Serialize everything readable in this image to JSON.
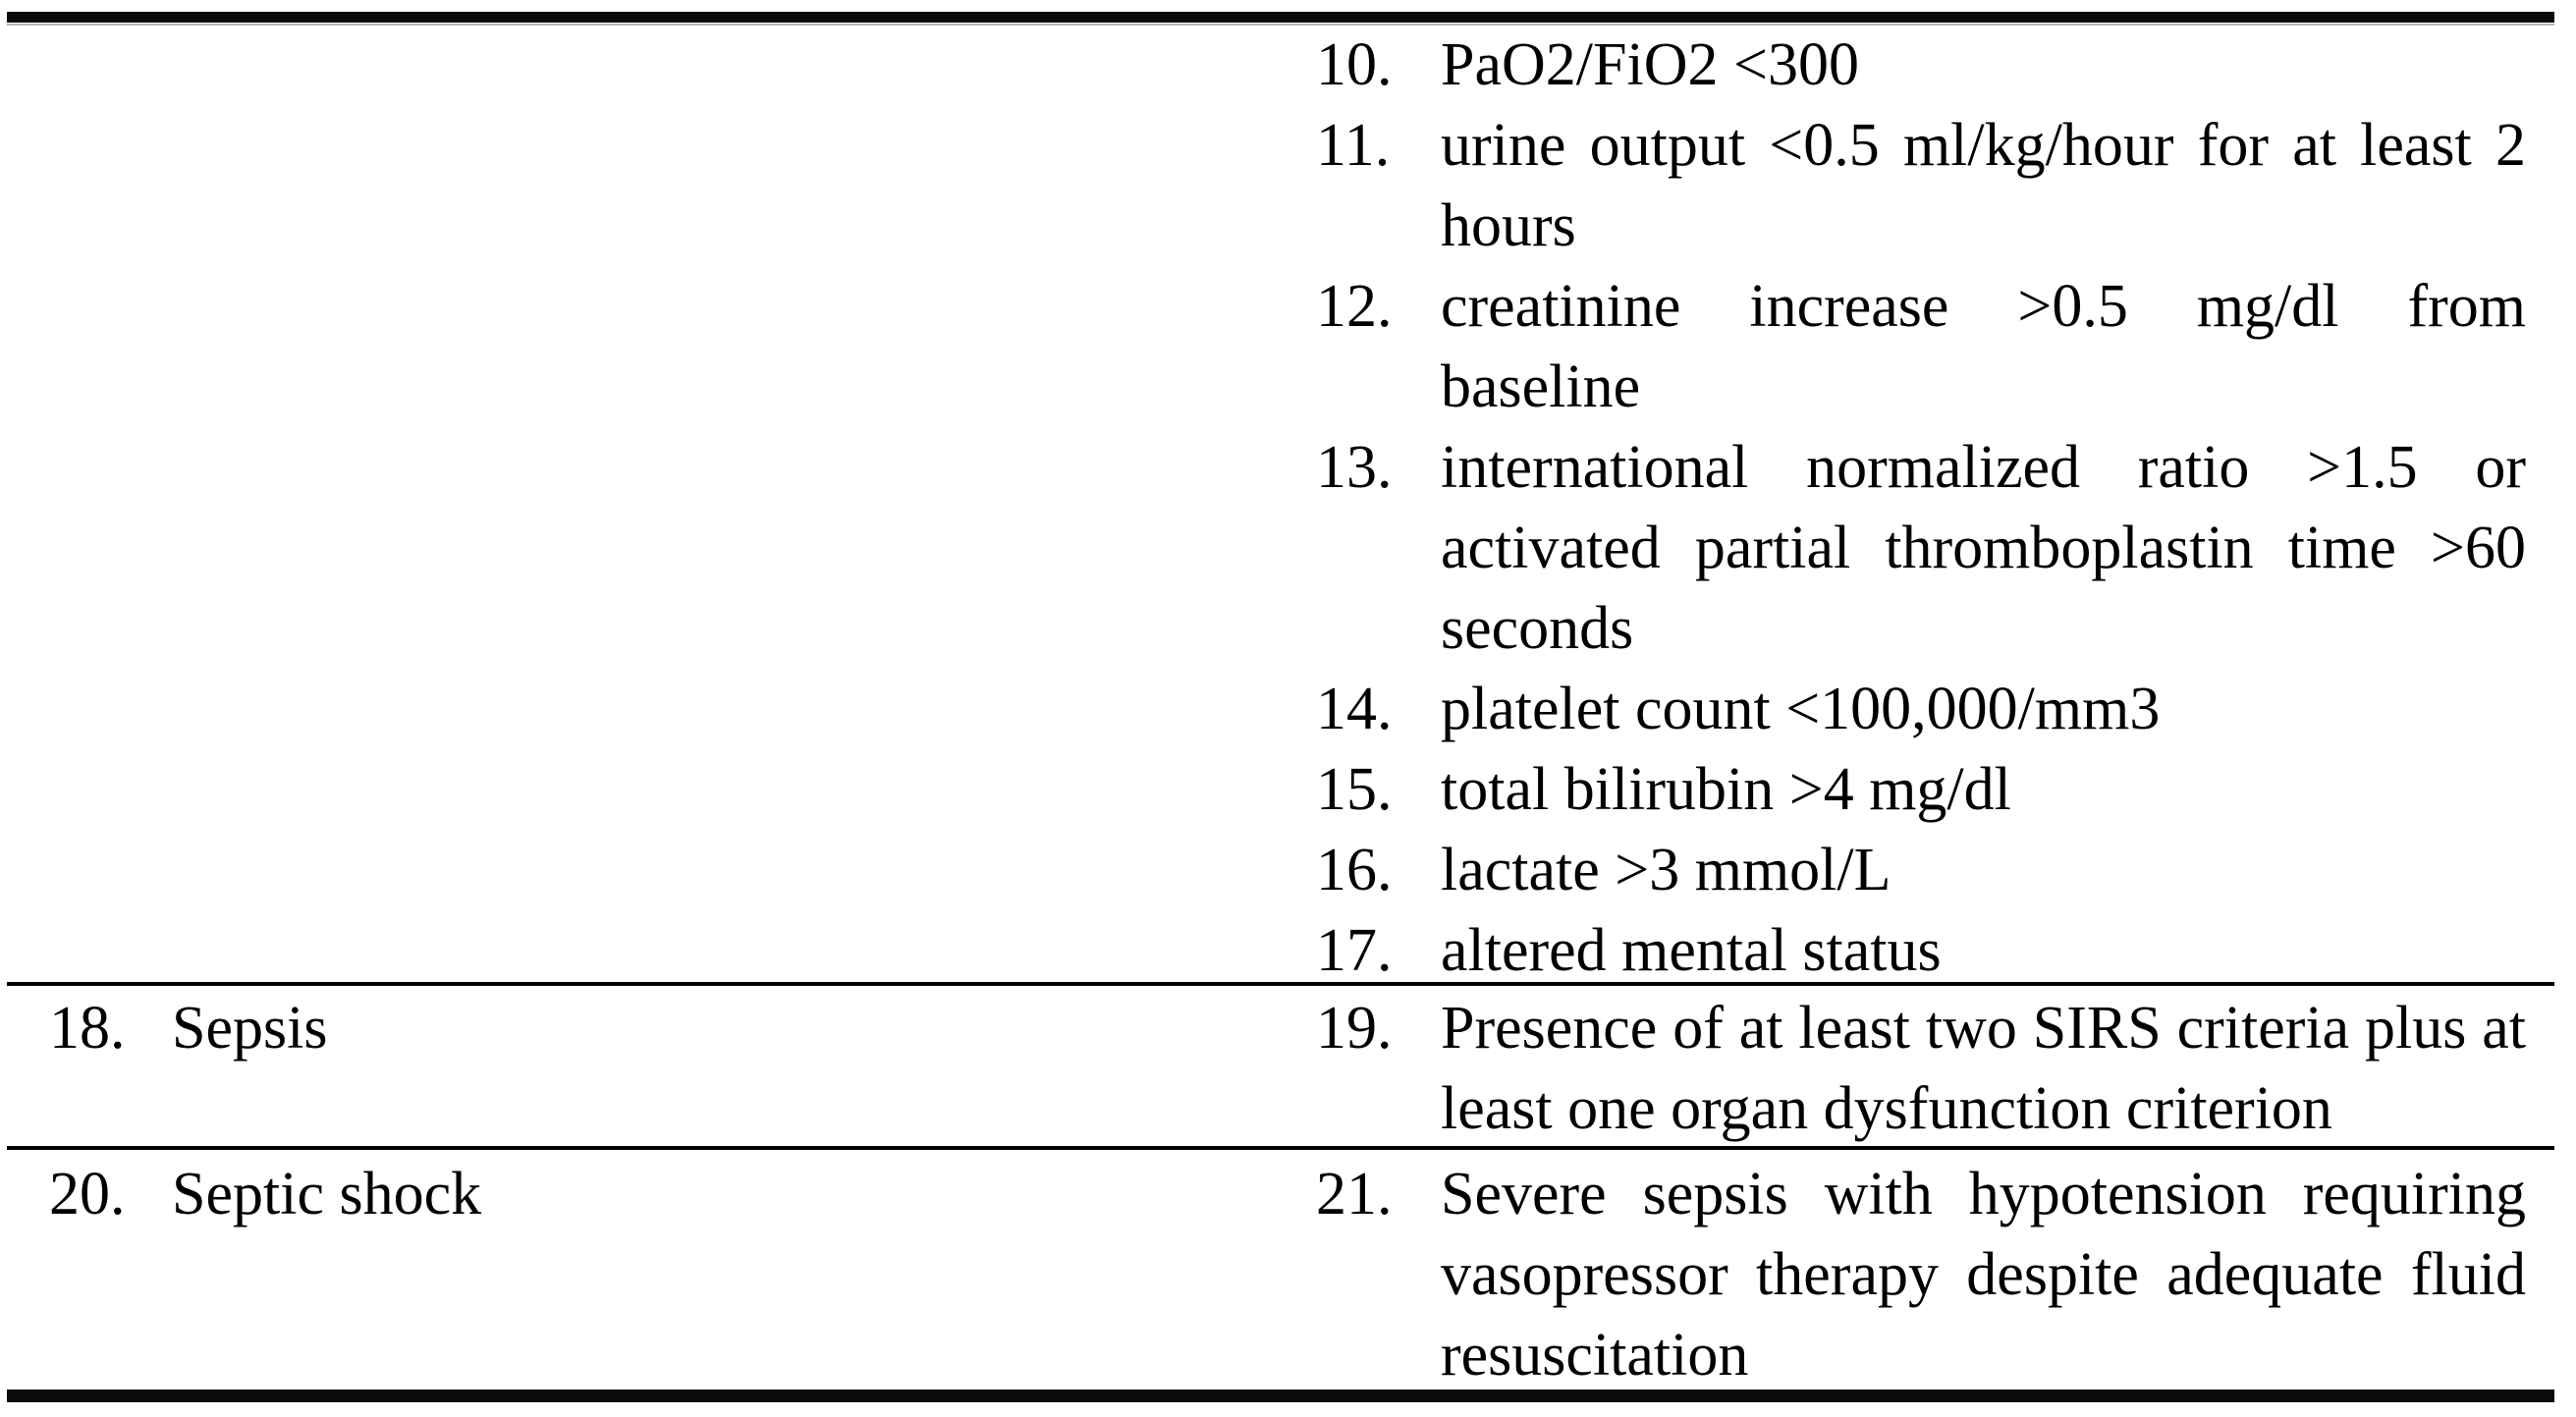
{
  "document": {
    "type": "paper-table-fragment",
    "description": "continuation of a numbered clinical-criteria table (sepsis definitions)"
  },
  "colors": {
    "background": "#ffffff",
    "text": "#000000",
    "rule_heavy": "#0b0b0b",
    "rule_thin": "#000000"
  },
  "table": {
    "sections": [
      {
        "left": null,
        "right": [
          {
            "num": "10.",
            "lines": [
              {
                "t": "PaO2/FiO2 <300",
                "j": false
              }
            ]
          },
          {
            "num": "11.",
            "lines": [
              {
                "t": "urine output <0.5 ml/kg/hour for at least 2",
                "j": true
              },
              {
                "t": "hours",
                "j": false
              }
            ]
          },
          {
            "num": "12.",
            "lines": [
              {
                "t": "creatinine increase >0.5 mg/dl from",
                "j": true
              },
              {
                "t": "baseline",
                "j": false
              }
            ]
          },
          {
            "num": "13.",
            "lines": [
              {
                "t": "international normalized ratio >1.5 or",
                "j": true
              },
              {
                "t": "activated partial thromboplastin time >60",
                "j": true
              },
              {
                "t": "seconds",
                "j": false
              }
            ]
          },
          {
            "num": "14.",
            "lines": [
              {
                "t": "platelet count <100,000/mm3",
                "j": false
              }
            ]
          },
          {
            "num": "15.",
            "lines": [
              {
                "t": "total bilirubin >4 mg/dl",
                "j": false
              }
            ]
          },
          {
            "num": "16.",
            "lines": [
              {
                "t": "lactate >3 mmol/L",
                "j": false
              }
            ]
          },
          {
            "num": "17.",
            "lines": [
              {
                "t": "altered mental status",
                "j": false
              }
            ]
          }
        ]
      },
      {
        "left": {
          "num": "18.",
          "lines": [
            {
              "t": "Sepsis",
              "j": false
            }
          ]
        },
        "right": [
          {
            "num": "19.",
            "lines": [
              {
                "t": "Presence of at least two SIRS criteria plus at",
                "j": true
              },
              {
                "t": "least one organ dysfunction criterion",
                "j": false
              }
            ]
          }
        ]
      },
      {
        "left": {
          "num": "20.",
          "lines": [
            {
              "t": "Septic shock",
              "j": false
            }
          ]
        },
        "right": [
          {
            "num": "21.",
            "lines": [
              {
                "t": "Severe sepsis with hypotension requiring",
                "j": true
              },
              {
                "t": "vasopressor therapy despite adequate fluid",
                "j": true
              },
              {
                "t": "resuscitation",
                "j": false
              }
            ]
          }
        ]
      }
    ]
  }
}
